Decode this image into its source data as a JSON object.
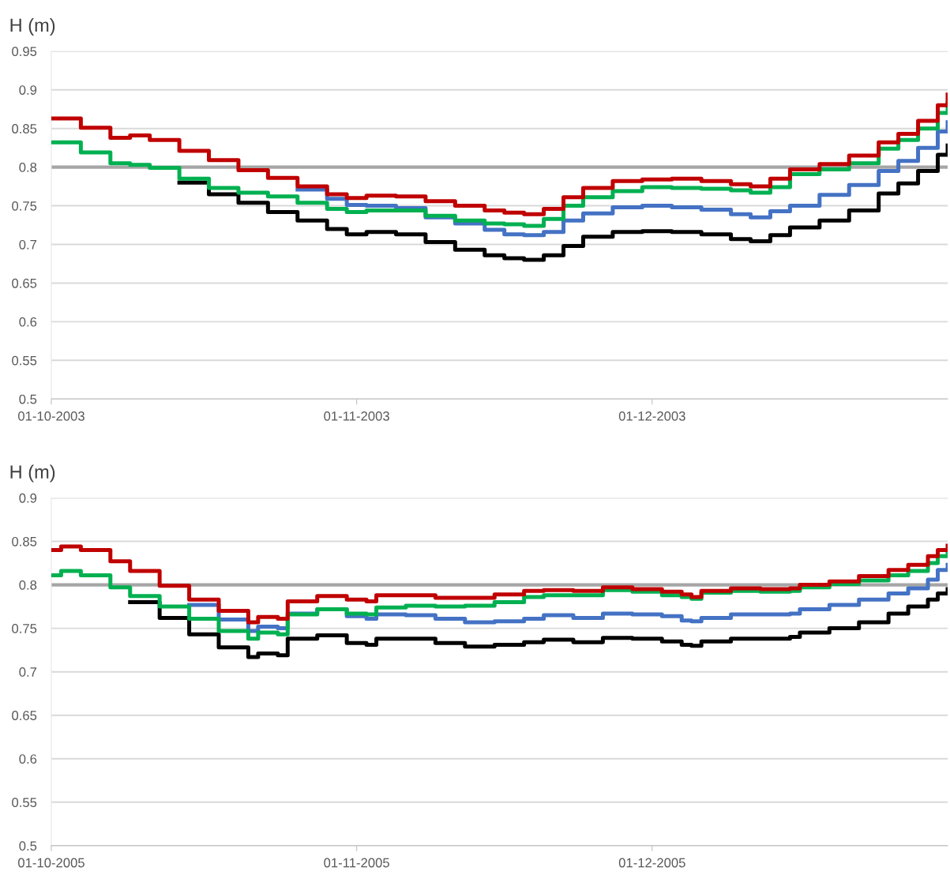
{
  "chart_data": [
    {
      "type": "step",
      "ylabel": "H (m)",
      "x": [
        "2003-10-01",
        "2003-10-04",
        "2003-10-07",
        "2003-10-09",
        "2003-10-11",
        "2003-10-14",
        "2003-10-17",
        "2003-10-20",
        "2003-10-23",
        "2003-10-26",
        "2003-10-29",
        "2003-10-31",
        "2003-11-02",
        "2003-11-05",
        "2003-11-08",
        "2003-11-11",
        "2003-11-14",
        "2003-11-16",
        "2003-11-18",
        "2003-11-20",
        "2003-11-22",
        "2003-11-24",
        "2003-11-27",
        "2003-11-30",
        "2003-12-03",
        "2003-12-06",
        "2003-12-09",
        "2003-12-11",
        "2003-12-13",
        "2003-12-15",
        "2003-12-18",
        "2003-12-21",
        "2003-12-24",
        "2003-12-26",
        "2003-12-28",
        "2003-12-30",
        "2003-12-31"
      ],
      "series": [
        {
          "color": "#000000",
          "values": [
            null,
            null,
            null,
            null,
            null,
            0.78,
            0.765,
            0.754,
            0.742,
            0.731,
            0.72,
            0.713,
            0.716,
            0.713,
            0.703,
            0.693,
            0.686,
            0.682,
            0.68,
            0.686,
            0.698,
            0.71,
            0.716,
            0.717,
            0.716,
            0.713,
            0.707,
            0.704,
            0.712,
            0.722,
            0.731,
            0.744,
            0.766,
            0.779,
            0.795,
            0.816,
            0.828
          ]
        },
        {
          "color": "#4472c4",
          "values": [
            null,
            null,
            null,
            null,
            null,
            null,
            null,
            null,
            null,
            0.771,
            0.759,
            0.751,
            0.75,
            0.747,
            0.735,
            0.727,
            0.719,
            0.713,
            0.712,
            0.716,
            0.731,
            0.74,
            0.748,
            0.75,
            0.748,
            0.745,
            0.739,
            0.735,
            0.743,
            0.75,
            0.764,
            0.777,
            0.795,
            0.808,
            0.825,
            0.846,
            0.858
          ]
        },
        {
          "color": "#00b050",
          "values": [
            0.832,
            0.819,
            0.805,
            0.803,
            0.799,
            0.785,
            0.773,
            0.767,
            0.762,
            0.754,
            0.746,
            0.742,
            0.744,
            0.744,
            0.737,
            0.731,
            0.727,
            0.726,
            0.724,
            0.733,
            0.75,
            0.761,
            0.769,
            0.774,
            0.773,
            0.772,
            0.77,
            0.767,
            0.774,
            0.791,
            0.797,
            0.805,
            0.824,
            0.835,
            0.85,
            0.87,
            0.882
          ]
        },
        {
          "color": "#c00000",
          "values": [
            0.863,
            0.851,
            0.838,
            0.841,
            0.835,
            0.821,
            0.809,
            0.796,
            0.786,
            0.775,
            0.765,
            0.76,
            0.763,
            0.762,
            0.756,
            0.75,
            0.744,
            0.741,
            0.739,
            0.746,
            0.761,
            0.773,
            0.782,
            0.784,
            0.785,
            0.782,
            0.778,
            0.775,
            0.785,
            0.797,
            0.804,
            0.815,
            0.832,
            0.843,
            0.86,
            0.88,
            0.894
          ]
        }
      ],
      "xlim": [
        "2003-10-01",
        "2003-12-31"
      ],
      "xticks": [
        {
          "value": "2003-10-01",
          "label": "01-10-2003"
        },
        {
          "value": "2003-11-01",
          "label": "01-11-2003"
        },
        {
          "value": "2003-12-01",
          "label": "01-12-2003"
        }
      ],
      "ylim": [
        0.5,
        0.95
      ],
      "yticks": [
        0.5,
        0.55,
        0.6,
        0.65,
        0.7,
        0.75,
        0.8,
        0.85,
        0.9,
        0.95
      ],
      "grid": "y",
      "ref_lines": [
        {
          "axis": "y",
          "value": 0.8,
          "color": "#a6a6a6"
        }
      ]
    },
    {
      "type": "step",
      "ylabel": "H (m)",
      "x": [
        "2005-10-01",
        "2005-10-02",
        "2005-10-04",
        "2005-10-07",
        "2005-10-09",
        "2005-10-12",
        "2005-10-15",
        "2005-10-18",
        "2005-10-21",
        "2005-10-22",
        "2005-10-24",
        "2005-10-25",
        "2005-10-28",
        "2005-10-31",
        "2005-11-02",
        "2005-11-03",
        "2005-11-06",
        "2005-11-09",
        "2005-11-12",
        "2005-11-15",
        "2005-11-18",
        "2005-11-20",
        "2005-11-23",
        "2005-11-26",
        "2005-11-29",
        "2005-12-02",
        "2005-12-04",
        "2005-12-05",
        "2005-12-06",
        "2005-12-09",
        "2005-12-12",
        "2005-12-15",
        "2005-12-16",
        "2005-12-19",
        "2005-12-22",
        "2005-12-25",
        "2005-12-27",
        "2005-12-29",
        "2005-12-30",
        "2005-12-31"
      ],
      "series": [
        {
          "color": "#000000",
          "values": [
            null,
            null,
            null,
            null,
            0.78,
            0.762,
            0.743,
            0.728,
            0.717,
            0.721,
            0.719,
            0.738,
            0.742,
            0.733,
            0.731,
            0.738,
            0.738,
            0.733,
            0.729,
            0.731,
            0.734,
            0.737,
            0.734,
            0.739,
            0.738,
            0.735,
            0.731,
            0.73,
            0.735,
            0.738,
            0.738,
            0.74,
            0.745,
            0.75,
            0.757,
            0.767,
            0.775,
            0.783,
            0.79,
            0.795
          ]
        },
        {
          "color": "#4472c4",
          "values": [
            null,
            null,
            null,
            null,
            null,
            null,
            0.777,
            0.76,
            0.747,
            0.752,
            0.75,
            0.767,
            0.772,
            0.764,
            0.761,
            0.766,
            0.765,
            0.761,
            0.757,
            0.758,
            0.761,
            0.765,
            0.762,
            0.767,
            0.766,
            0.764,
            0.759,
            0.758,
            0.762,
            0.766,
            0.766,
            0.767,
            0.772,
            0.777,
            0.783,
            0.79,
            0.796,
            0.806,
            0.817,
            0.823
          ]
        },
        {
          "color": "#00b050",
          "values": [
            0.811,
            0.816,
            0.811,
            0.797,
            0.787,
            0.775,
            0.761,
            0.747,
            0.738,
            0.745,
            0.743,
            0.766,
            0.772,
            0.767,
            0.766,
            0.774,
            0.776,
            0.775,
            0.776,
            0.78,
            0.786,
            0.788,
            0.788,
            0.794,
            0.792,
            0.788,
            0.786,
            0.784,
            0.791,
            0.793,
            0.792,
            0.793,
            0.797,
            0.801,
            0.805,
            0.811,
            0.816,
            0.825,
            0.833,
            0.837
          ]
        },
        {
          "color": "#c00000",
          "values": [
            0.84,
            0.844,
            0.84,
            0.827,
            0.816,
            0.799,
            0.783,
            0.77,
            0.757,
            0.763,
            0.761,
            0.781,
            0.787,
            0.783,
            0.781,
            0.788,
            0.788,
            0.785,
            0.785,
            0.789,
            0.793,
            0.794,
            0.793,
            0.797,
            0.795,
            0.792,
            0.789,
            0.786,
            0.793,
            0.796,
            0.795,
            0.796,
            0.8,
            0.804,
            0.81,
            0.817,
            0.823,
            0.833,
            0.84,
            0.845
          ]
        }
      ],
      "xlim": [
        "2005-10-01",
        "2005-12-31"
      ],
      "xticks": [
        {
          "value": "2005-10-01",
          "label": "01-10-2005"
        },
        {
          "value": "2005-11-01",
          "label": "01-11-2005"
        },
        {
          "value": "2005-12-01",
          "label": "01-12-2005"
        }
      ],
      "ylim": [
        0.5,
        0.9
      ],
      "yticks": [
        0.5,
        0.55,
        0.6,
        0.65,
        0.7,
        0.75,
        0.8,
        0.85,
        0.9
      ],
      "grid": "y",
      "ref_lines": [
        {
          "axis": "y",
          "value": 0.8,
          "color": "#a6a6a6"
        }
      ]
    }
  ]
}
